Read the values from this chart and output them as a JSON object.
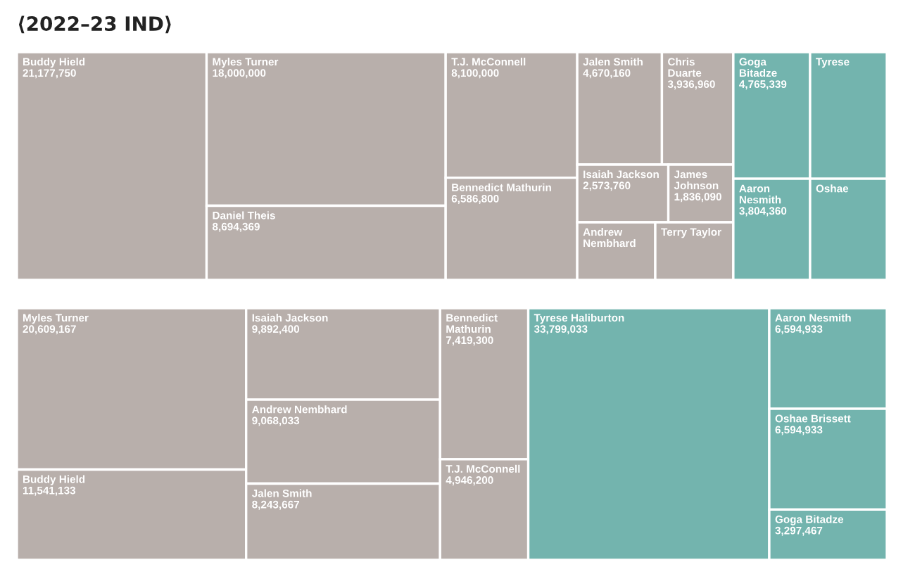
{
  "chart_data": [
    {
      "type": "other",
      "title": "⟨2022–23 IND⟩",
      "categories": [
        "Buddy Hield",
        "Myles Turner",
        "Daniel Theis",
        "T.J. McConnell",
        "Bennedict Mathurin",
        "Jalen Smith",
        "Chris Duarte",
        "Isaiah Jackson",
        "James Johnson",
        "Andrew Nembhard",
        "Terry Taylor",
        "Goga Bitadze",
        "Tyrese",
        "Aaron Nesmith",
        "Oshae"
      ],
      "values": [
        21177750,
        18000000,
        8694369,
        8100000,
        6586800,
        4670160,
        3936960,
        2573760,
        1836090,
        null,
        null,
        4765339,
        null,
        3804360,
        null
      ],
      "value_labels": [
        "21,177,750",
        "18,000,000",
        "8,694,369",
        "8,100,000",
        "6,586,800",
        "4,670,160",
        "3,936,960",
        "2,573,760",
        "1,836,090",
        null,
        null,
        "4,765,339",
        null,
        "3,804,360",
        null
      ],
      "colors": [
        "#b8afab",
        "#b8afab",
        "#b8afab",
        "#b8afab",
        "#b8afab",
        "#b8afab",
        "#b8afab",
        "#b8afab",
        "#b8afab",
        "#b8afab",
        "#b8afab",
        "#73b4ae",
        "#73b4ae",
        "#73b4ae",
        "#73b4ae"
      ]
    },
    {
      "type": "other",
      "categories": [
        "Myles Turner",
        "Buddy Hield",
        "Isaiah Jackson",
        "Andrew Nembhard",
        "Jalen Smith",
        "Bennedict Mathurin",
        "T.J. McConnell",
        "Tyrese Haliburton",
        "Aaron Nesmith",
        "Oshae Brissett",
        "Goga Bitadze"
      ],
      "values": [
        20609167,
        11541133,
        9892400,
        9068033,
        8243667,
        7419300,
        4946200,
        33799033,
        6594933,
        6594933,
        3297467
      ],
      "value_labels": [
        "20,609,167",
        "11,541,133",
        "9,892,400",
        "9,068,033",
        "8,243,667",
        "7,419,300",
        "4,946,200",
        "33,799,033",
        "6,594,933",
        "6,594,933",
        "3,297,467"
      ],
      "colors": [
        "#b8afab",
        "#b8afab",
        "#b8afab",
        "#b8afab",
        "#b8afab",
        "#b8afab",
        "#b8afab",
        "#73b4ae",
        "#73b4ae",
        "#73b4ae",
        "#73b4ae"
      ]
    }
  ]
}
